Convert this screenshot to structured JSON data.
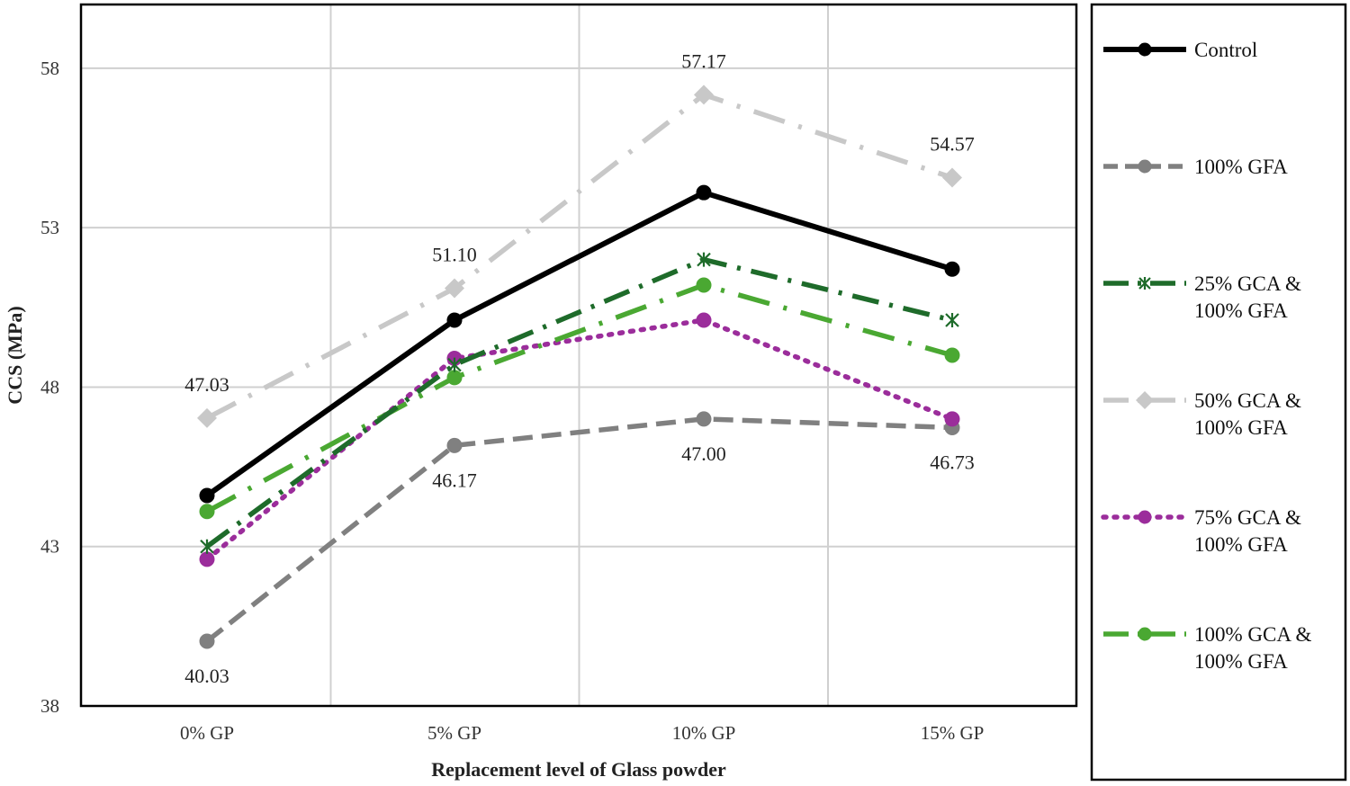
{
  "chart_data": {
    "type": "line",
    "title": "",
    "xlabel": "Replacement level of Glass powder",
    "ylabel": "CCS (MPa)",
    "categories": [
      "0% GP",
      "5% GP",
      "10% GP",
      "15% GP"
    ],
    "ylim": [
      38,
      60
    ],
    "yticks": [
      38,
      43,
      48,
      53,
      58
    ],
    "grid": true,
    "legend_position": "right",
    "series": [
      {
        "name": "Control",
        "name_lines": [
          "Control"
        ],
        "color": "#000000",
        "dash": "solid",
        "marker": "circle",
        "values": [
          44.6,
          50.1,
          54.1,
          51.7
        ]
      },
      {
        "name": "100% GFA",
        "name_lines": [
          "100% GFA"
        ],
        "color": "#808080",
        "dash": "dash",
        "marker": "circle",
        "values": [
          40.03,
          46.17,
          47.0,
          46.73
        ]
      },
      {
        "name": "25% GCA & 100% GFA",
        "name_lines": [
          "25% GCA &",
          "100% GFA"
        ],
        "color": "#1e6b2a",
        "dash": "dashdot",
        "marker": "star",
        "values": [
          43.0,
          48.7,
          52.0,
          50.1
        ]
      },
      {
        "name": "50% GCA & 100% GFA",
        "name_lines": [
          "50% GCA &",
          "100% GFA"
        ],
        "color": "#c8c8c8",
        "dash": "longdashdot",
        "marker": "diamond",
        "values": [
          47.03,
          51.1,
          57.17,
          54.57
        ]
      },
      {
        "name": "75% GCA & 100% GFA",
        "name_lines": [
          "75% GCA &",
          "100% GFA"
        ],
        "color": "#9b2d9b",
        "dash": "dot",
        "marker": "circle",
        "values": [
          42.6,
          48.9,
          50.1,
          47.0
        ]
      },
      {
        "name": "100% GCA & 100% GFA",
        "name_lines": [
          "100% GCA &",
          "100% GFA"
        ],
        "color": "#4aa832",
        "dash": "longdashdot",
        "marker": "circle",
        "values": [
          44.1,
          48.3,
          51.2,
          49.0
        ]
      }
    ],
    "data_labels": [
      {
        "series": 3,
        "point": 0,
        "text": "47.03",
        "position": "above"
      },
      {
        "series": 3,
        "point": 1,
        "text": "51.10",
        "position": "above"
      },
      {
        "series": 3,
        "point": 2,
        "text": "57.17",
        "position": "above"
      },
      {
        "series": 3,
        "point": 3,
        "text": "54.57",
        "position": "above"
      },
      {
        "series": 1,
        "point": 0,
        "text": "40.03",
        "position": "below"
      },
      {
        "series": 1,
        "point": 1,
        "text": "46.17",
        "position": "below"
      },
      {
        "series": 1,
        "point": 2,
        "text": "47.00",
        "position": "below"
      },
      {
        "series": 1,
        "point": 3,
        "text": "46.73",
        "position": "below"
      }
    ]
  }
}
